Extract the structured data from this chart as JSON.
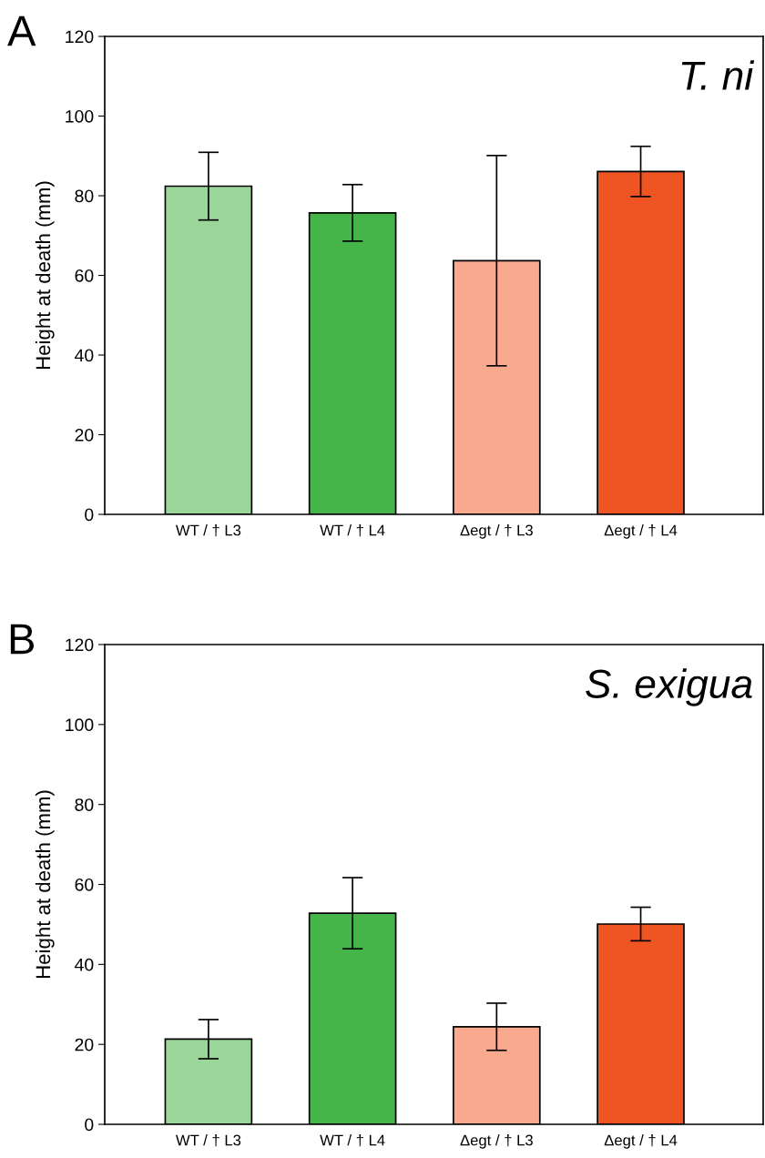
{
  "chart_data": [
    {
      "type": "bar",
      "title": "T. ni",
      "ylabel": "Height at death (mm)",
      "annotations": [
        "A"
      ],
      "categories": [
        "WT / † L3",
        "WT / † L4",
        "Δegt / † L3",
        "Δegt / † L4"
      ],
      "values": [
        82.4,
        75.7,
        63.7,
        86.1
      ],
      "errors": [
        8.5,
        7.1,
        26.4,
        6.3
      ],
      "colors": [
        "#9ad69a",
        "#45b549",
        "#f8a98e",
        "#ef5522"
      ],
      "ylim": [
        0,
        120
      ],
      "yticks": [
        0,
        20,
        40,
        60,
        80,
        100,
        120
      ],
      "grid": false,
      "legend": false
    },
    {
      "type": "bar",
      "title": "S. exigua",
      "ylabel": "Height at death (mm)",
      "annotations": [
        "B"
      ],
      "categories": [
        "WT / † L3",
        "WT / † L4",
        "Δegt / † L3",
        "Δegt / † L4"
      ],
      "values": [
        21.3,
        52.8,
        24.4,
        50.1
      ],
      "errors": [
        4.9,
        8.9,
        5.9,
        4.2
      ],
      "colors": [
        "#9ad69a",
        "#45b549",
        "#f8a98e",
        "#ef5522"
      ],
      "ylim": [
        0,
        120
      ],
      "yticks": [
        0,
        20,
        40,
        60,
        80,
        100,
        120
      ],
      "grid": false,
      "legend": false
    }
  ]
}
